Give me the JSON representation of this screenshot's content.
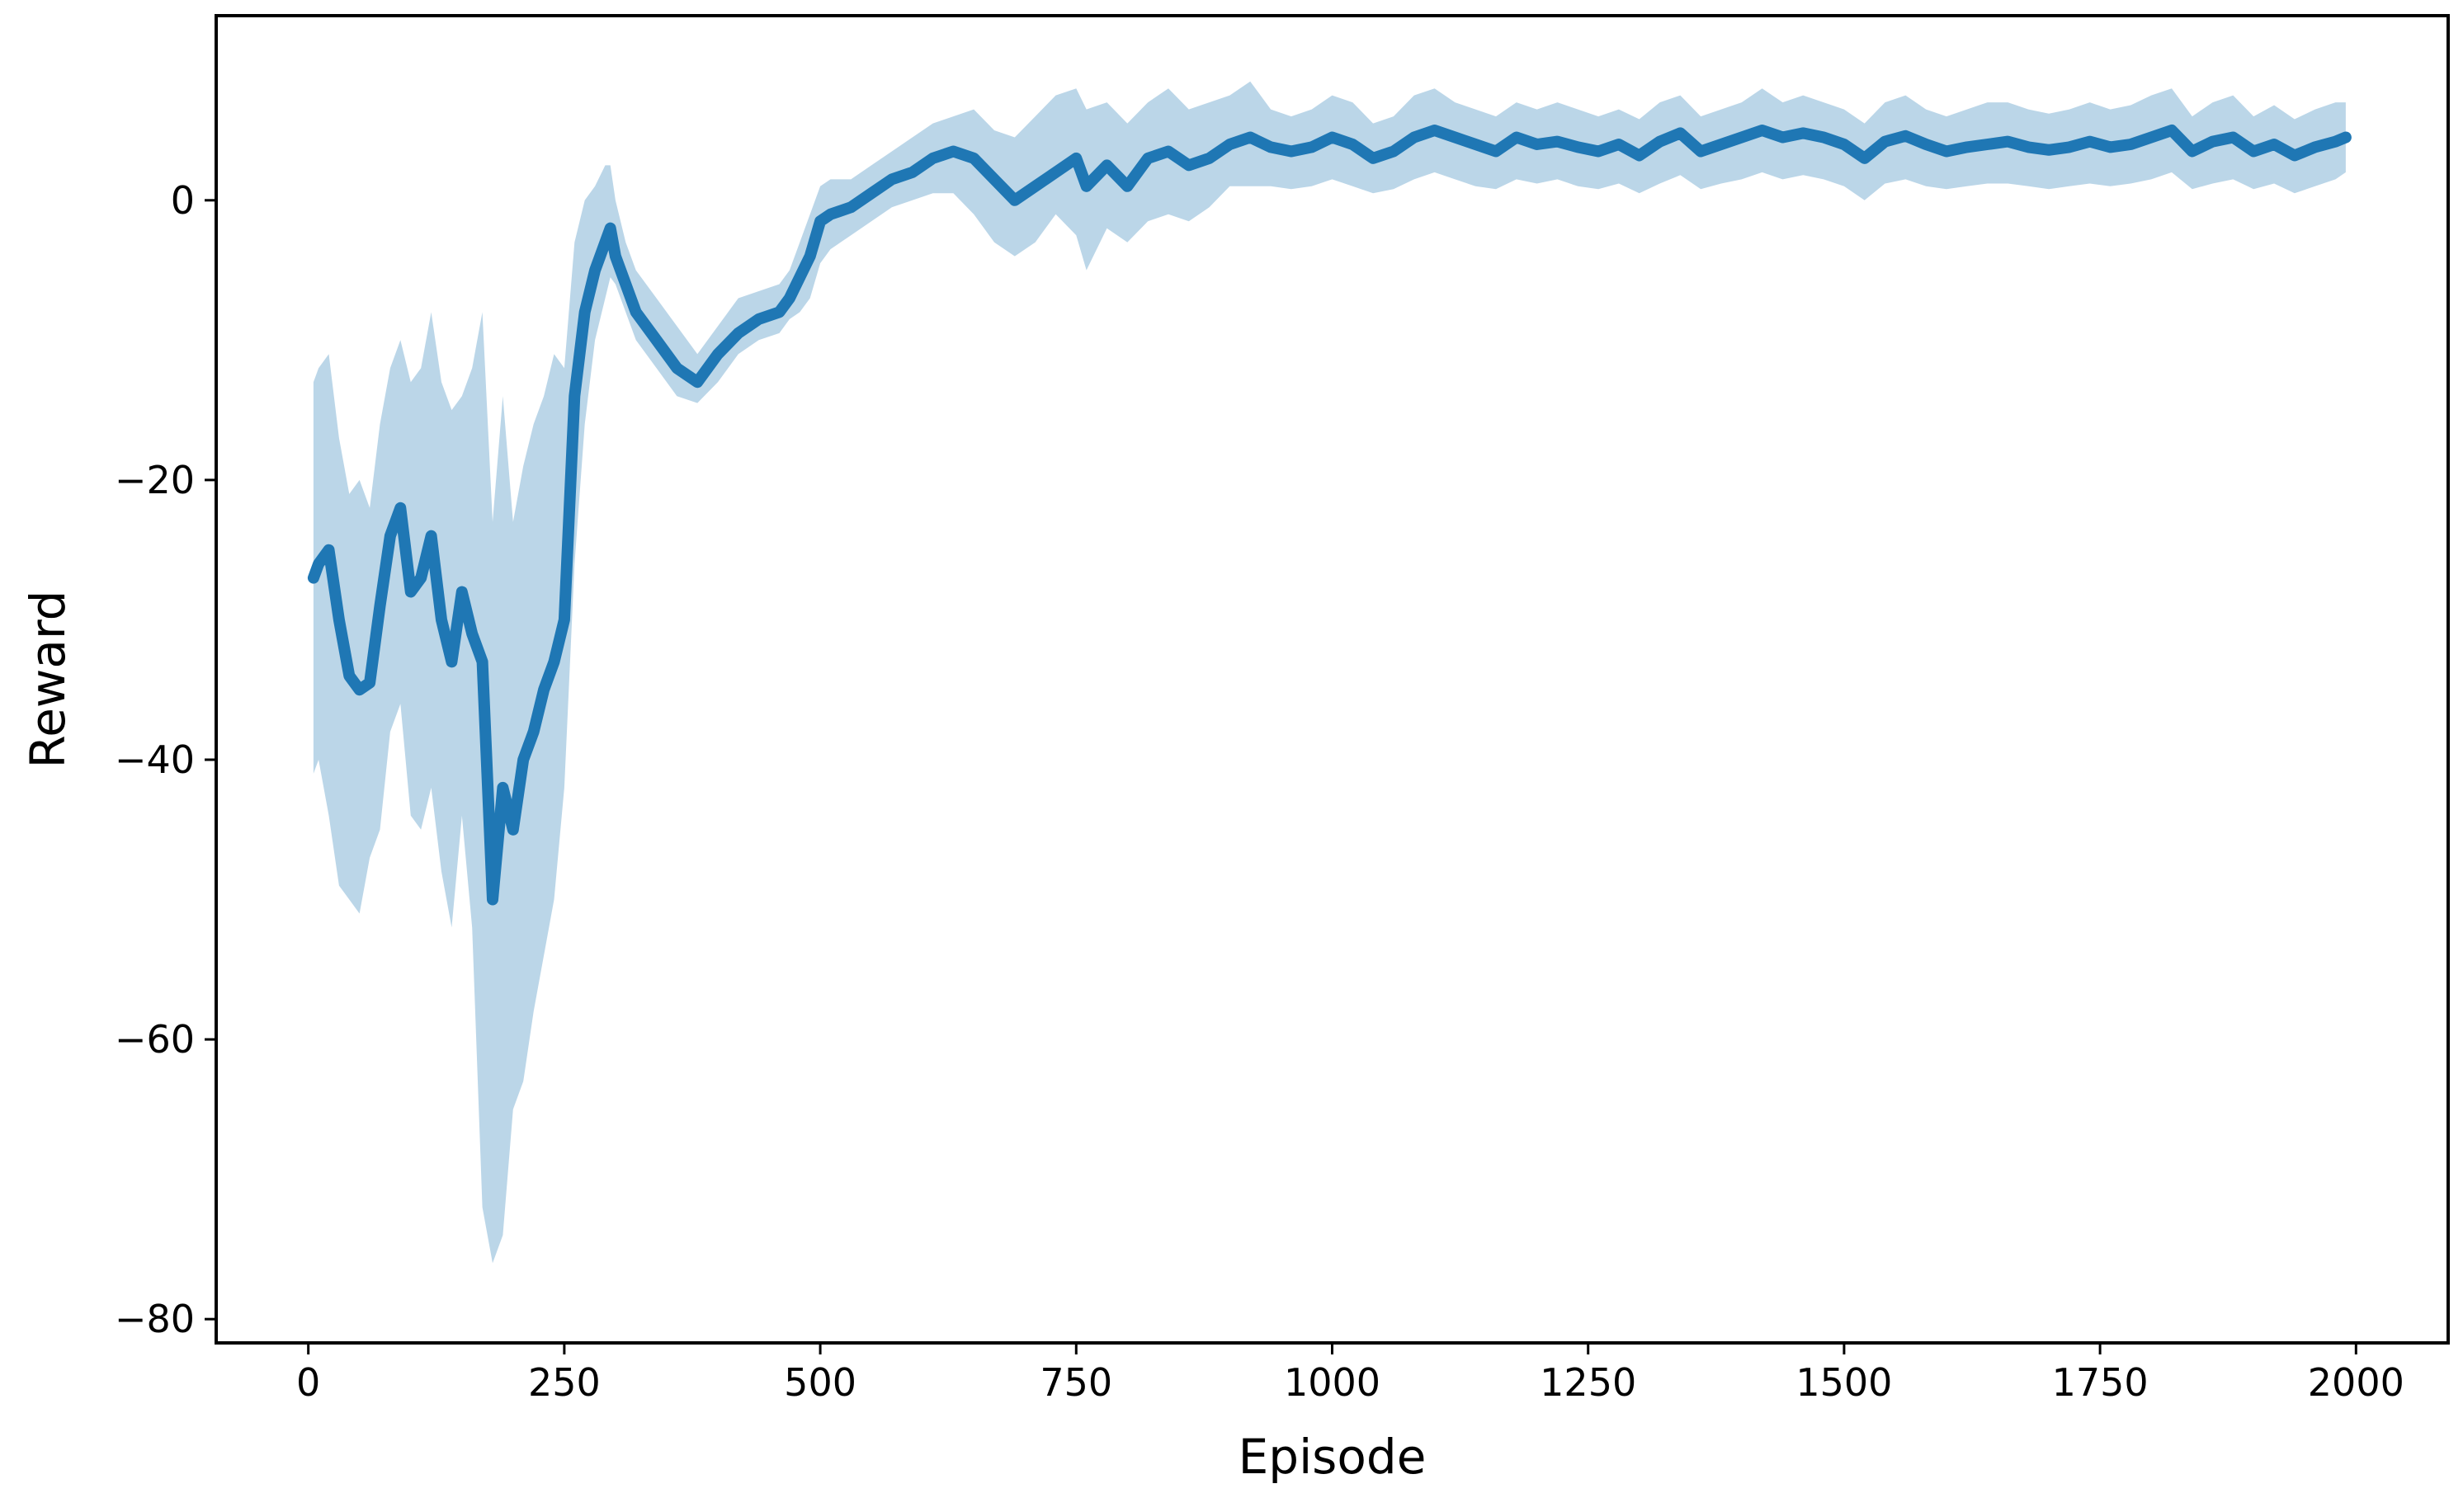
{
  "chart_data": {
    "type": "line",
    "title": "",
    "xlabel": "Episode",
    "ylabel": "Reward",
    "xlim": [
      -90,
      2090
    ],
    "ylim": [
      -81.7,
      13.2
    ],
    "xticks": [
      0,
      250,
      500,
      750,
      1000,
      1250,
      1500,
      1750,
      2000
    ],
    "yticks": [
      0,
      -20,
      -40,
      -60,
      -80
    ],
    "grid": false,
    "legend": "none",
    "colors": {
      "line": "#1f77b4",
      "band": "#1f77b4",
      "band_opacity": 0.3,
      "axes": "#000000"
    },
    "series": [
      {
        "x": [
          5,
          10,
          20,
          30,
          40,
          50,
          60,
          70,
          80,
          90,
          100,
          110,
          120,
          130,
          140,
          150,
          160,
          170,
          180,
          190,
          200,
          210,
          220,
          230,
          240,
          250,
          260,
          270,
          280,
          290,
          295,
          300,
          310,
          320,
          340,
          360,
          380,
          400,
          420,
          440,
          460,
          470,
          480,
          490,
          500,
          510,
          530,
          550,
          570,
          590,
          610,
          630,
          650,
          670,
          690,
          710,
          730,
          750,
          760,
          780,
          800,
          820,
          840,
          860,
          880,
          900,
          920,
          940,
          960,
          980,
          1000,
          1020,
          1040,
          1060,
          1080,
          1100,
          1120,
          1140,
          1160,
          1180,
          1200,
          1220,
          1240,
          1260,
          1280,
          1300,
          1320,
          1340,
          1360,
          1380,
          1400,
          1420,
          1440,
          1460,
          1480,
          1500,
          1520,
          1540,
          1560,
          1580,
          1600,
          1620,
          1640,
          1660,
          1680,
          1700,
          1720,
          1740,
          1760,
          1780,
          1800,
          1820,
          1840,
          1860,
          1880,
          1900,
          1920,
          1940,
          1960,
          1980,
          1990
        ],
        "mean": [
          -27,
          -26,
          -25,
          -30,
          -34,
          -35,
          -34.5,
          -29,
          -24,
          -22,
          -28,
          -27,
          -24,
          -30,
          -33,
          -28,
          -31,
          -33,
          -50,
          -42,
          -45,
          -40,
          -38,
          -35,
          -33,
          -30,
          -14,
          -8,
          -5,
          -3,
          -2,
          -4,
          -6,
          -8,
          -10,
          -12,
          -13,
          -11,
          -9.5,
          -8.5,
          -8,
          -7,
          -5.5,
          -4,
          -1.5,
          -1,
          -0.5,
          0.5,
          1.5,
          2,
          3,
          3.5,
          3,
          1.5,
          0,
          1,
          2,
          3,
          1,
          2.5,
          1,
          3,
          3.5,
          2.5,
          3,
          4,
          4.5,
          3.8,
          3.5,
          3.8,
          4.5,
          4,
          3,
          3.5,
          4.5,
          5,
          4.5,
          4,
          3.5,
          4.5,
          4,
          4.2,
          3.8,
          3.5,
          4,
          3.2,
          4.2,
          4.8,
          3.5,
          4,
          4.5,
          5,
          4.5,
          4.8,
          4.5,
          4,
          3,
          4.2,
          4.6,
          4,
          3.5,
          3.8,
          4,
          4.2,
          3.8,
          3.6,
          3.8,
          4.2,
          3.8,
          4,
          4.5,
          5,
          3.5,
          4.2,
          4.5,
          3.5,
          4,
          3.2,
          3.8,
          4.2,
          4.5
        ],
        "lower": [
          -41,
          -40,
          -44,
          -49,
          -50,
          -51,
          -47,
          -45,
          -38,
          -36,
          -44,
          -45,
          -42,
          -48,
          -52,
          -44,
          -52,
          -72,
          -76,
          -74,
          -65,
          -63,
          -58,
          -54,
          -50,
          -42,
          -26,
          -16,
          -10,
          -7,
          -5.5,
          -6,
          -8,
          -10,
          -12,
          -14,
          -14.5,
          -13,
          -11,
          -10,
          -9.5,
          -8.5,
          -8,
          -7,
          -4.5,
          -3.5,
          -2.5,
          -1.5,
          -0.5,
          0,
          0.5,
          0.5,
          -1,
          -3,
          -4,
          -3,
          -1,
          -2.5,
          -5,
          -2,
          -3,
          -1.5,
          -1,
          -1.5,
          -0.5,
          1,
          1,
          1,
          0.8,
          1,
          1.5,
          1,
          0.5,
          0.8,
          1.5,
          2,
          1.5,
          1,
          0.8,
          1.5,
          1.2,
          1.5,
          1,
          0.8,
          1.2,
          0.5,
          1.2,
          1.8,
          0.8,
          1.2,
          1.5,
          2,
          1.5,
          1.8,
          1.5,
          1,
          0,
          1.2,
          1.5,
          1,
          0.8,
          1,
          1.2,
          1.2,
          1,
          0.8,
          1,
          1.2,
          1,
          1.2,
          1.5,
          2,
          0.8,
          1.2,
          1.5,
          0.8,
          1.2,
          0.5,
          1,
          1.5,
          2
        ],
        "upper": [
          -13,
          -12,
          -11,
          -17,
          -21,
          -20,
          -22,
          -16,
          -12,
          -10,
          -13,
          -12,
          -8,
          -13,
          -15,
          -14,
          -12,
          -8,
          -23,
          -14,
          -23,
          -19,
          -16,
          -14,
          -11,
          -12,
          -3,
          0,
          1,
          2.5,
          2.5,
          0,
          -3,
          -5,
          -7,
          -9,
          -11,
          -9,
          -7,
          -6.5,
          -6,
          -5,
          -3,
          -1,
          1,
          1.5,
          1.5,
          2.5,
          3.5,
          4.5,
          5.5,
          6,
          6.5,
          5,
          4.5,
          6,
          7.5,
          8,
          6.5,
          7,
          5.5,
          7,
          8,
          6.5,
          7,
          7.5,
          8.5,
          6.5,
          6,
          6.5,
          7.5,
          7,
          5.5,
          6,
          7.5,
          8,
          7,
          6.5,
          6,
          7,
          6.5,
          7,
          6.5,
          6,
          6.5,
          5.8,
          7,
          7.5,
          6,
          6.5,
          7,
          8,
          7,
          7.5,
          7,
          6.5,
          5.5,
          7,
          7.5,
          6.5,
          6,
          6.5,
          7,
          7,
          6.5,
          6.2,
          6.5,
          7,
          6.5,
          6.8,
          7.5,
          8,
          6,
          7,
          7.5,
          6,
          6.8,
          5.8,
          6.5,
          7,
          7
        ]
      }
    ]
  }
}
